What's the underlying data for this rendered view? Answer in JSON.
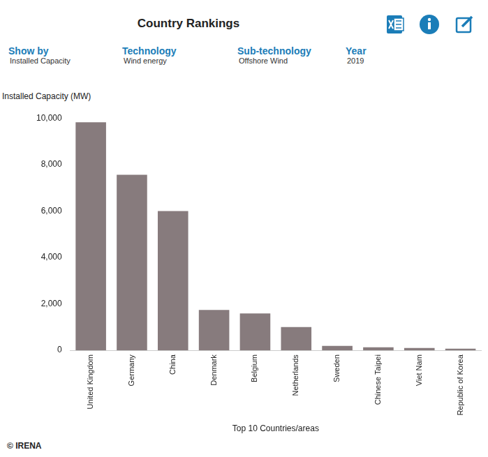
{
  "chart_data": {
    "type": "bar",
    "title": "Country Rankings",
    "y_label": "Installed Capacity (MW)",
    "x_label": "Top 10 Countries/areas",
    "categories": [
      "United Kingdom",
      "Germany",
      "China",
      "Denmark",
      "Belgium",
      "Netherlands",
      "Sweden",
      "Chinese Taipei",
      "Viet Nam",
      "Republic of Korea"
    ],
    "values": [
      9820,
      7560,
      6000,
      1740,
      1590,
      1000,
      190,
      130,
      100,
      70
    ],
    "color": "#877b7d",
    "ylim": [
      0,
      10000
    ],
    "yticks": [
      0,
      {
        "value": 2000,
        "label": "2,000"
      },
      {
        "value": 4000,
        "label": "4,000"
      },
      {
        "value": 6000,
        "label": "6,000"
      },
      {
        "value": 8000,
        "label": "8,000"
      },
      {
        "value": 10000,
        "label": "10,000"
      }
    ],
    "grid": false
  },
  "filters": [
    {
      "label": "Show by",
      "value": "Installed Capacity"
    },
    {
      "label": "Technology",
      "value": "Wind energy"
    },
    {
      "label": "Sub-technology",
      "value": "Offshore Wind"
    },
    {
      "label": "Year",
      "value": "2019"
    }
  ],
  "footer": "© IRENA"
}
